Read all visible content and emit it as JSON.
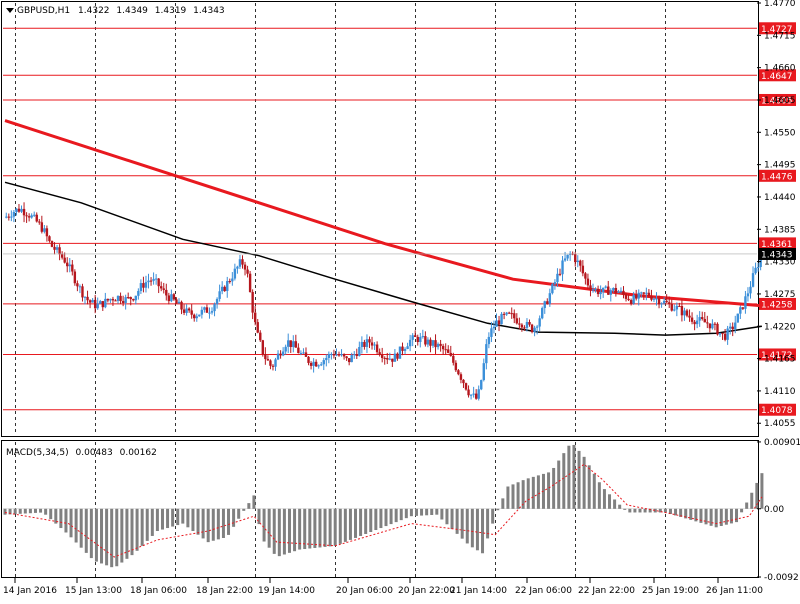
{
  "colors": {
    "background": "#ffffff",
    "frame": "#000000",
    "grid": "#000000",
    "bull_candle": "#3b8fd9",
    "bear_candle": "#b5161d",
    "level_line": "#e8191f",
    "ma_slow": "#e8191f",
    "ma_fast": "#000000",
    "macd_hist": "#808080",
    "macd_signal": "#e8191f",
    "current_price_bg": "#000000",
    "current_price_text": "#ffffff",
    "level_label_bg": "#e8191f",
    "level_label_text": "#ffffff"
  },
  "price_panel": {
    "symbol_label": "GBPUSD,H1",
    "ohlc": [
      "1.4322",
      "1.4349",
      "1.4319",
      "1.4343"
    ],
    "current_price": "1.4343"
  },
  "macd_panel": {
    "label": "MACD(5,34,5)",
    "values": [
      "0.00483",
      "0.00162"
    ]
  },
  "chart_data": [
    {
      "type": "candlestick",
      "title": "GBPUSD,H1",
      "ylim": [
        1.4035,
        1.477
      ],
      "y_ticks": [
        "1.4770",
        "1.4715",
        "1.4660",
        "1.4605",
        "1.4550",
        "1.4495",
        "1.4440",
        "1.4385",
        "1.4330",
        "1.4275",
        "1.4220",
        "1.4165",
        "1.4110",
        "1.4055"
      ],
      "x_ticks": [
        "14 Jan 2016",
        "15 Jan 13:00",
        "18 Jan 06:00",
        "18 Jan 22:00",
        "19 Jan 14:00",
        "20 Jan 06:00",
        "20 Jan 22:00",
        "21 Jan 14:00",
        "22 Jan 06:00",
        "22 Jan 22:00",
        "25 Jan 19:00",
        "26 Jan 11:00"
      ],
      "grid": true,
      "horizontal_levels": [
        {
          "value": 1.4727,
          "label": "1.4727"
        },
        {
          "value": 1.4647,
          "label": "1.4647"
        },
        {
          "value": 1.4605,
          "label": "1.4605"
        },
        {
          "value": 1.4476,
          "label": "1.4476"
        },
        {
          "value": 1.4361,
          "label": "1.4361"
        },
        {
          "value": 1.4258,
          "label": "1.4258"
        },
        {
          "value": 1.4172,
          "label": "1.4172"
        },
        {
          "value": 1.4078,
          "label": "1.4078"
        }
      ],
      "current_price": 1.4343,
      "close_path": [
        [
          0,
          1.4405
        ],
        [
          6,
          1.4415
        ],
        [
          12,
          1.442
        ],
        [
          18,
          1.4412
        ],
        [
          24,
          1.44
        ],
        [
          30,
          1.4385
        ],
        [
          36,
          1.4358
        ],
        [
          42,
          1.4345
        ],
        [
          48,
          1.433
        ],
        [
          54,
          1.4305
        ],
        [
          60,
          1.428
        ],
        [
          66,
          1.4262
        ],
        [
          72,
          1.4255
        ],
        [
          78,
          1.426
        ],
        [
          84,
          1.4268
        ],
        [
          90,
          1.427
        ],
        [
          96,
          1.4265
        ],
        [
          102,
          1.4272
        ],
        [
          108,
          1.429
        ],
        [
          114,
          1.43
        ],
        [
          120,
          1.4292
        ],
        [
          126,
          1.4275
        ],
        [
          132,
          1.4265
        ],
        [
          138,
          1.4252
        ],
        [
          144,
          1.4242
        ],
        [
          150,
          1.424
        ],
        [
          156,
          1.4245
        ],
        [
          162,
          1.425
        ],
        [
          168,
          1.427
        ],
        [
          174,
          1.429
        ],
        [
          180,
          1.431
        ],
        [
          186,
          1.433
        ],
        [
          190,
          1.432
        ],
        [
          194,
          1.4262
        ],
        [
          198,
          1.421
        ],
        [
          204,
          1.417
        ],
        [
          210,
          1.415
        ],
        [
          216,
          1.4175
        ],
        [
          222,
          1.4195
        ],
        [
          228,
          1.4185
        ],
        [
          234,
          1.417
        ],
        [
          240,
          1.416
        ],
        [
          246,
          1.4158
        ],
        [
          252,
          1.4165
        ],
        [
          258,
          1.4175
        ],
        [
          264,
          1.417
        ],
        [
          270,
          1.416
        ],
        [
          276,
          1.4175
        ],
        [
          282,
          1.4188
        ],
        [
          288,
          1.4195
        ],
        [
          294,
          1.418
        ],
        [
          300,
          1.4168
        ],
        [
          306,
          1.4165
        ],
        [
          312,
          1.418
        ],
        [
          318,
          1.4195
        ],
        [
          324,
          1.42
        ],
        [
          330,
          1.4195
        ],
        [
          336,
          1.419
        ],
        [
          342,
          1.4185
        ],
        [
          348,
          1.4175
        ],
        [
          354,
          1.4155
        ],
        [
          360,
          1.413
        ],
        [
          366,
          1.4105
        ],
        [
          372,
          1.4095
        ],
        [
          376,
          1.414
        ],
        [
          380,
          1.42
        ],
        [
          386,
          1.4225
        ],
        [
          392,
          1.4235
        ],
        [
          398,
          1.4238
        ],
        [
          404,
          1.423
        ],
        [
          410,
          1.4222
        ],
        [
          416,
          1.4215
        ],
        [
          422,
          1.424
        ],
        [
          428,
          1.427
        ],
        [
          434,
          1.43
        ],
        [
          440,
          1.433
        ],
        [
          446,
          1.4345
        ],
        [
          452,
          1.4325
        ],
        [
          458,
          1.4295
        ],
        [
          464,
          1.4282
        ],
        [
          470,
          1.4278
        ],
        [
          476,
          1.4282
        ],
        [
          482,
          1.428
        ],
        [
          488,
          1.4272
        ],
        [
          494,
          1.4265
        ],
        [
          500,
          1.427
        ],
        [
          506,
          1.4275
        ],
        [
          512,
          1.4268
        ],
        [
          518,
          1.4262
        ],
        [
          524,
          1.4255
        ],
        [
          530,
          1.425
        ],
        [
          536,
          1.424
        ],
        [
          542,
          1.4232
        ],
        [
          548,
          1.4228
        ],
        [
          554,
          1.4225
        ],
        [
          560,
          1.4215
        ],
        [
          566,
          1.4202
        ],
        [
          572,
          1.4215
        ],
        [
          578,
          1.424
        ],
        [
          584,
          1.4272
        ],
        [
          590,
          1.431
        ],
        [
          596,
          1.4343
        ]
      ],
      "series": [
        {
          "name": "MA slow",
          "points": [
            [
              0,
              1.457
            ],
            [
              100,
              1.45
            ],
            [
              200,
              1.443
            ],
            [
              300,
              1.436
            ],
            [
              400,
              1.43
            ],
            [
              500,
              1.4272
            ],
            [
              596,
              1.4255
            ]
          ]
        },
        {
          "name": "MA fast",
          "points": [
            [
              0,
              1.4465
            ],
            [
              60,
              1.443
            ],
            [
              140,
              1.4368
            ],
            [
              200,
              1.434
            ],
            [
              260,
              1.43
            ],
            [
              320,
              1.4262
            ],
            [
              380,
              1.4225
            ],
            [
              420,
              1.421
            ],
            [
              480,
              1.4208
            ],
            [
              520,
              1.4205
            ],
            [
              560,
              1.4208
            ],
            [
              596,
              1.422
            ]
          ]
        }
      ]
    },
    {
      "type": "bar",
      "title": "MACD(5,34,5)",
      "ylim": [
        -0.0092,
        0.009
      ],
      "y_ticks": [
        "0.00901",
        "0.00",
        "-0.0092"
      ],
      "series": [
        {
          "name": "histogram",
          "points": [
            [
              0,
              -0.0008
            ],
            [
              30,
              -0.0005
            ],
            [
              50,
              -0.0035
            ],
            [
              70,
              -0.007
            ],
            [
              86,
              -0.008
            ],
            [
              102,
              -0.006
            ],
            [
              120,
              -0.003
            ],
            [
              140,
              -0.002
            ],
            [
              160,
              -0.0045
            ],
            [
              175,
              -0.0038
            ],
            [
              186,
              -0.0008
            ],
            [
              196,
              0.0018
            ],
            [
              202,
              -0.004
            ],
            [
              214,
              -0.0065
            ],
            [
              232,
              -0.0055
            ],
            [
              260,
              -0.005
            ],
            [
              290,
              -0.003
            ],
            [
              320,
              -0.001
            ],
            [
              340,
              -0.0008
            ],
            [
              366,
              -0.005
            ],
            [
              376,
              -0.006
            ],
            [
              386,
              -0.001
            ],
            [
              396,
              0.003
            ],
            [
              410,
              0.004
            ],
            [
              430,
              0.005
            ],
            [
              446,
              0.009
            ],
            [
              456,
              0.007
            ],
            [
              470,
              0.003
            ],
            [
              490,
              -0.0005
            ],
            [
              520,
              -0.0005
            ],
            [
              540,
              -0.0015
            ],
            [
              560,
              -0.0025
            ],
            [
              576,
              -0.0018
            ],
            [
              586,
              0.0015
            ],
            [
              596,
              0.0048
            ]
          ]
        },
        {
          "name": "signal",
          "points": [
            [
              0,
              -0.0005
            ],
            [
              50,
              -0.002
            ],
            [
              86,
              -0.0065
            ],
            [
              120,
              -0.0042
            ],
            [
              160,
              -0.003
            ],
            [
              196,
              -0.001
            ],
            [
              214,
              -0.0045
            ],
            [
              260,
              -0.005
            ],
            [
              320,
              -0.002
            ],
            [
              366,
              -0.003
            ],
            [
              386,
              -0.0035
            ],
            [
              410,
              0.001
            ],
            [
              430,
              0.003
            ],
            [
              456,
              0.006
            ],
            [
              470,
              0.004
            ],
            [
              490,
              0.0005
            ],
            [
              520,
              -0.0005
            ],
            [
              560,
              -0.002
            ],
            [
              586,
              -0.001
            ],
            [
              596,
              0.0016
            ]
          ]
        }
      ]
    }
  ]
}
